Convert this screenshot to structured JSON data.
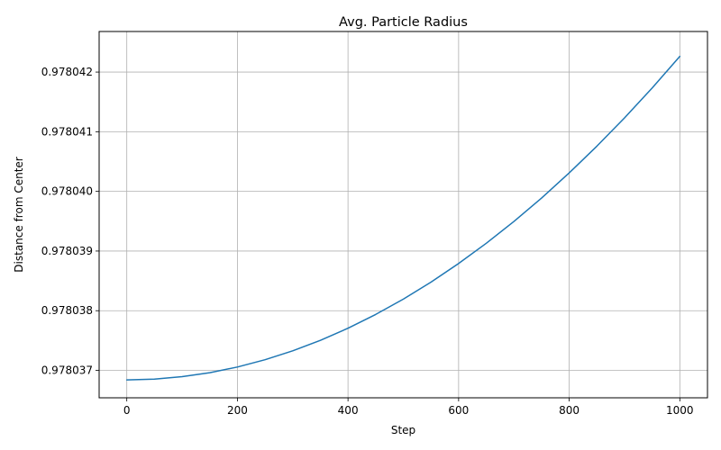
{
  "chart_data": {
    "type": "line",
    "title": "Avg. Particle Radius",
    "xlabel": "Step",
    "ylabel": "Distance from Center",
    "xlim": [
      -50,
      1050
    ],
    "ylim": [
      0.97803654,
      0.97804268
    ],
    "x_ticks": [
      0,
      200,
      400,
      600,
      800,
      1000
    ],
    "x_tick_labels": [
      "0",
      "200",
      "400",
      "600",
      "800",
      "1000"
    ],
    "y_ticks": [
      0.978037,
      0.978038,
      0.978039,
      0.97804,
      0.978041,
      0.978042
    ],
    "y_tick_labels": [
      "0.978037",
      "0.978038",
      "0.978039",
      "0.978040",
      "0.978041",
      "0.978042"
    ],
    "grid": true,
    "legend": "none",
    "series": [
      {
        "color": "#1f77b4",
        "x": [
          0,
          50,
          100,
          150,
          200,
          250,
          300,
          350,
          400,
          450,
          500,
          550,
          600,
          650,
          700,
          750,
          800,
          850,
          900,
          950,
          1000
        ],
        "y": [
          0.97803684,
          0.978036853,
          0.978036894,
          0.978036961,
          0.978037056,
          0.978037178,
          0.978037327,
          0.978037503,
          0.978037706,
          0.978037937,
          0.978038194,
          0.978038479,
          0.978038791,
          0.97803913,
          0.978039496,
          0.978039889,
          0.97804031,
          0.978040758,
          0.978041232,
          0.978041734,
          0.978042263
        ]
      }
    ]
  }
}
